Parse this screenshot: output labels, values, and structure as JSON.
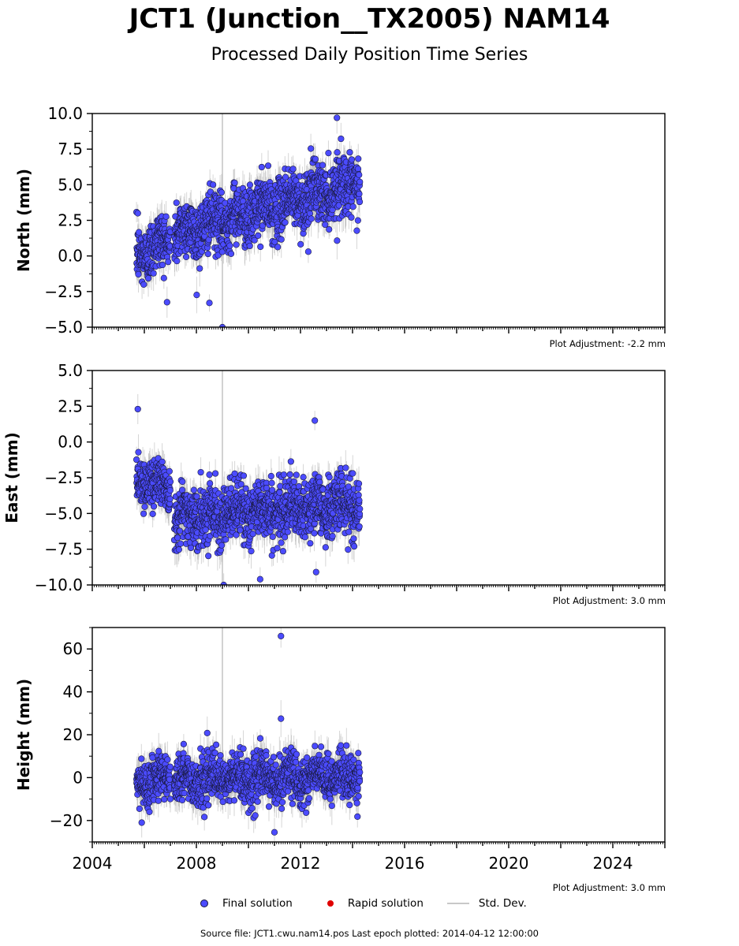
{
  "figure": {
    "title": "JCT1 (Junction__TX2005) NAM14",
    "subtitle": "Processed Daily Position Time Series",
    "source": "Source file: JCT1.cwu.nam14.pos  Last epoch plotted: 2014-04-12 12:00:00",
    "legend": {
      "final": "Final solution",
      "rapid": "Rapid solution",
      "std": "Std. Dev."
    },
    "colors": {
      "final_fill": "#4b4bff",
      "final_edge": "#1a1a40",
      "rapid": "#e00000",
      "std": "#b4b4b4"
    }
  },
  "chart_data": [
    {
      "type": "scatter",
      "ylabel": "North (mm)",
      "adjustment": "Plot Adjustment: -2.2 mm",
      "xlim": [
        2004,
        2026
      ],
      "ylim": [
        -5,
        10
      ],
      "yticks": [
        -5.0,
        -2.5,
        0.0,
        2.5,
        5.0,
        7.5,
        10.0
      ],
      "ytick_labels": [
        "−5.0",
        "−2.5",
        "0.0",
        "2.5",
        "5.0",
        "7.5",
        "10.0"
      ],
      "show_xticklabels": false,
      "segments": [
        {
          "x": [
            2005.7,
            2007.0
          ],
          "y0": 0.0,
          "slope": 0.9,
          "noise": 1.2
        },
        {
          "x": [
            2007.15,
            2014.28
          ],
          "y0": 1.5,
          "slope": 0.52,
          "noise": 1.2
        }
      ],
      "outliers": [
        [
          2009.0,
          -5.0
        ],
        [
          2013.4,
          9.7
        ],
        [
          2008.5,
          -3.3
        ],
        [
          2005.75,
          3.0
        ],
        [
          2012.3,
          0.3
        ]
      ]
    },
    {
      "type": "scatter",
      "ylabel": "East (mm)",
      "adjustment": "Plot Adjustment: 3.0 mm",
      "xlim": [
        2004,
        2026
      ],
      "ylim": [
        -10,
        5
      ],
      "yticks": [
        -10.0,
        -7.5,
        -5.0,
        -2.5,
        0.0,
        2.5,
        5.0
      ],
      "ytick_labels": [
        "−10.0",
        "−7.5",
        "−5.0",
        "−2.5",
        "0.0",
        "2.5",
        "5.0"
      ],
      "show_xticklabels": false,
      "segments": [
        {
          "x": [
            2005.7,
            2007.0
          ],
          "y0": -2.5,
          "slope": -0.5,
          "noise": 1.0
        },
        {
          "x": [
            2007.15,
            2014.28
          ],
          "y0": -5.2,
          "slope": 0.12,
          "noise": 1.2
        }
      ],
      "outliers": [
        [
          2005.75,
          2.3
        ],
        [
          2012.55,
          1.5
        ],
        [
          2009.05,
          -10.0
        ],
        [
          2010.45,
          -9.6
        ],
        [
          2012.6,
          -9.1
        ]
      ]
    },
    {
      "type": "scatter",
      "ylabel": "Height (mm)",
      "adjustment": "Plot Adjustment: 3.0 mm",
      "xlim": [
        2004,
        2026
      ],
      "ylim": [
        -30,
        70
      ],
      "yticks": [
        -20,
        0,
        20,
        40,
        60
      ],
      "ytick_labels": [
        "−20",
        "0",
        "20",
        "40",
        "60"
      ],
      "show_xticklabels": true,
      "xticks": [
        2004,
        2008,
        2012,
        2016,
        2020,
        2024
      ],
      "xtick_labels": [
        "2004",
        "2008",
        "2012",
        "2016",
        "2020",
        "2024"
      ],
      "segments": [
        {
          "x": [
            2005.7,
            2007.0
          ],
          "y0": -3.0,
          "slope": 4.0,
          "noise": 6.0
        },
        {
          "x": [
            2007.15,
            2014.28
          ],
          "y0": -1.0,
          "slope": 0.2,
          "noise": 6.5
        }
      ],
      "outliers": [
        [
          2011.25,
          66.0
        ],
        [
          2011.25,
          27.5
        ],
        [
          2011.0,
          -25.5
        ],
        [
          2005.9,
          -21.0
        ]
      ]
    }
  ]
}
